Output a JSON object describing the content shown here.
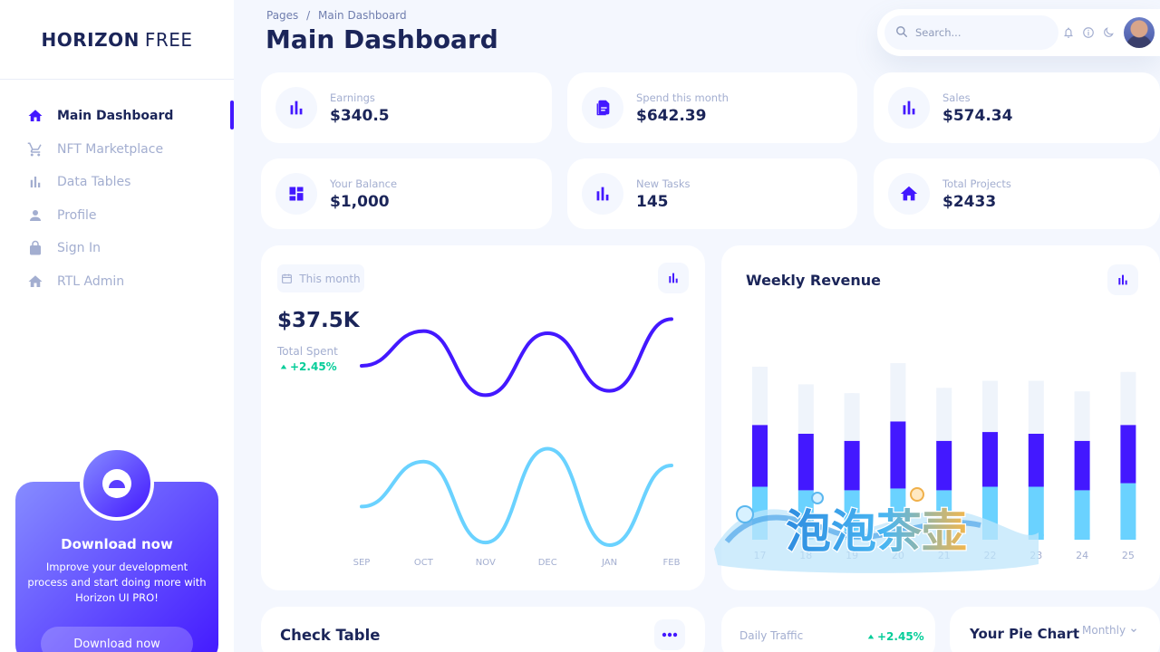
{
  "brand": {
    "bold": "HORIZON",
    "light": "FREE"
  },
  "sidebar": {
    "items": [
      {
        "label": "Main Dashboard",
        "icon": "home-icon",
        "active": true
      },
      {
        "label": "NFT Marketplace",
        "icon": "cart-icon"
      },
      {
        "label": "Data Tables",
        "icon": "bar-chart-icon"
      },
      {
        "label": "Profile",
        "icon": "person-icon"
      },
      {
        "label": "Sign In",
        "icon": "lock-icon"
      },
      {
        "label": "RTL Admin",
        "icon": "home-icon"
      }
    ]
  },
  "promo": {
    "title": "Download now",
    "text": "Improve your development process and start doing more with Horizon UI PRO!",
    "button": "Download now"
  },
  "header": {
    "breadcrumb_root": "Pages",
    "breadcrumb_sep": "/",
    "breadcrumb_current": "Main Dashboard",
    "title": "Main Dashboard",
    "search_placeholder": "Search..."
  },
  "stats": [
    {
      "label": "Earnings",
      "value": "$340.5",
      "icon": "bar-chart-icon"
    },
    {
      "label": "Spend this month",
      "value": "$642.39",
      "icon": "copy-icon"
    },
    {
      "label": "Sales",
      "value": "$574.34",
      "icon": "bar-chart-icon"
    },
    {
      "label": "Your Balance",
      "value": "$1,000",
      "icon": "dashboard-icon"
    },
    {
      "label": "New Tasks",
      "value": "145",
      "icon": "bar-chart-icon"
    },
    {
      "label": "Total Projects",
      "value": "$2433",
      "icon": "home-icon"
    }
  ],
  "total_spent": {
    "chip": "This month",
    "value": "$37.5K",
    "label": "Total Spent",
    "growth": "+2.45%"
  },
  "weekly_revenue": {
    "title": "Weekly Revenue"
  },
  "check_table": {
    "title": "Check Table"
  },
  "daily_traffic": {
    "label": "Daily Traffic",
    "growth": "+2.45%"
  },
  "pie_chart": {
    "title": "Your Pie Chart",
    "period": "Monthly"
  },
  "watermark_text": "泡泡茶壶",
  "colors": {
    "primary": "#4318ff",
    "light_blue": "#6ad2ff",
    "green": "#05cd99",
    "navy": "#1b2559",
    "gray": "#a3aed0"
  },
  "chart_data": [
    {
      "type": "line",
      "x": [
        "SEP",
        "OCT",
        "NOV",
        "DEC",
        "JAN",
        "FEB"
      ],
      "series": [
        {
          "values": [
            0.55,
            0.87,
            0.28,
            0.85,
            0.32,
            0.98
          ],
          "color": "#4318ff"
        },
        {
          "values": [
            0.3,
            0.65,
            0.02,
            0.75,
            0.0,
            0.62
          ],
          "color": "#6ad2ff"
        }
      ],
      "ylim": [
        0,
        1
      ],
      "grid": false
    },
    {
      "type": "bar",
      "stacked": true,
      "categories": [
        "17",
        "18",
        "19",
        "20",
        "21",
        "22",
        "23",
        "24",
        "25"
      ],
      "series": [
        {
          "values": [
            0.3,
            0.28,
            0.28,
            0.29,
            0.28,
            0.3,
            0.3,
            0.28,
            0.32
          ],
          "color": "#6ad2ff"
        },
        {
          "values": [
            0.35,
            0.32,
            0.28,
            0.38,
            0.28,
            0.31,
            0.3,
            0.28,
            0.33
          ],
          "color": "#4318ff"
        },
        {
          "values": [
            0.33,
            0.28,
            0.27,
            0.33,
            0.3,
            0.29,
            0.3,
            0.28,
            0.3
          ],
          "color": "#eff4fb"
        }
      ],
      "ylim": [
        0,
        1
      ],
      "grid": false
    }
  ]
}
